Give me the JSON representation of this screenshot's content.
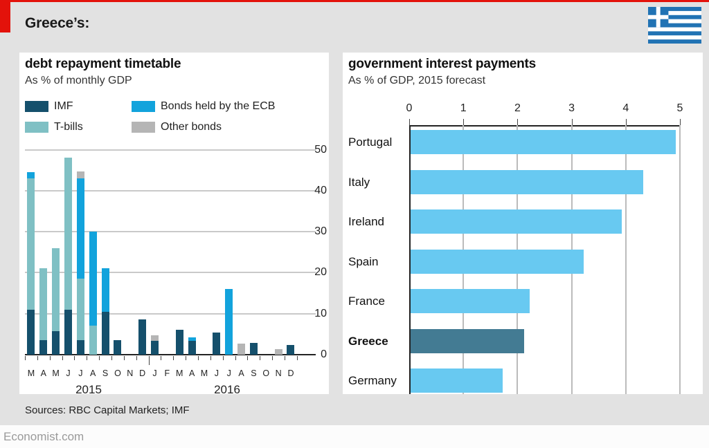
{
  "page": {
    "title": "Greece’s:",
    "sources": "Sources: RBC Capital Markets; IMF",
    "footer": "Economist.com"
  },
  "colors": {
    "accent_red": "#E3120B",
    "background": "#E2E2E2",
    "flag_blue": "#2173B4",
    "imf": "#15506C",
    "tbills": "#7FC0C4",
    "ecb_bonds": "#12A3DC",
    "other_bonds": "#B5B5B5",
    "interest_bar": "#68C9F1",
    "greece_bar": "#437B93"
  },
  "chart_data": [
    {
      "type": "bar",
      "stacked": true,
      "title": "debt repayment timetable",
      "subtitle": "As % of monthly GDP",
      "categories": [
        "M",
        "A",
        "M",
        "J",
        "J",
        "A",
        "S",
        "O",
        "N",
        "D",
        "J",
        "F",
        "M",
        "A",
        "M",
        "J",
        "J",
        "A",
        "S",
        "O",
        "N",
        "D"
      ],
      "group_labels": [
        "2015",
        "2016"
      ],
      "yticks": [
        0,
        10,
        20,
        30,
        40,
        50
      ],
      "ylim": [
        0,
        50
      ],
      "grid": true,
      "legend_position": "top-left",
      "series": [
        {
          "name": "IMF",
          "color": "#15506C",
          "values": [
            11,
            3.5,
            5.7,
            11,
            3.5,
            0,
            10.5,
            3.5,
            0,
            8.6,
            3.4,
            0,
            6.1,
            3.4,
            0,
            5.4,
            0,
            0,
            2.9,
            0,
            0,
            2.3
          ]
        },
        {
          "name": "T-bills",
          "color": "#7FC0C4",
          "values": [
            32,
            17.5,
            20.3,
            37,
            15,
            7,
            0,
            0,
            0,
            0,
            0,
            0,
            0,
            0,
            0,
            0,
            0,
            0,
            0,
            0,
            0,
            0
          ]
        },
        {
          "name": "Bonds held by the ECB",
          "color": "#12A3DC",
          "values": [
            1.5,
            0,
            0,
            0,
            24.5,
            23,
            10.5,
            0,
            0,
            0,
            0,
            0,
            0,
            0.8,
            0,
            0,
            16,
            0,
            0,
            0,
            0,
            0
          ]
        },
        {
          "name": "Other bonds",
          "color": "#B5B5B5",
          "values": [
            0,
            0,
            0,
            0,
            1.7,
            0,
            0,
            0,
            0,
            0,
            1.4,
            0,
            0,
            0,
            0,
            0,
            0,
            2.7,
            0,
            0,
            1.3,
            0
          ]
        }
      ]
    },
    {
      "type": "bar",
      "orientation": "horizontal",
      "title": "government interest payments",
      "subtitle": "As % of GDP, 2015 forecast",
      "categories": [
        "Portugal",
        "Italy",
        "Ireland",
        "Spain",
        "France",
        "Greece",
        "Germany"
      ],
      "values": [
        4.9,
        4.3,
        3.9,
        3.2,
        2.2,
        2.1,
        1.7
      ],
      "bar_color": "#68C9F1",
      "highlight": {
        "category": "Greece",
        "color": "#437B93",
        "bold_label": true
      },
      "xticks": [
        0,
        1,
        2,
        3,
        4,
        5
      ],
      "xlim": [
        0,
        5
      ],
      "grid": true,
      "axis_position": "top"
    }
  ]
}
